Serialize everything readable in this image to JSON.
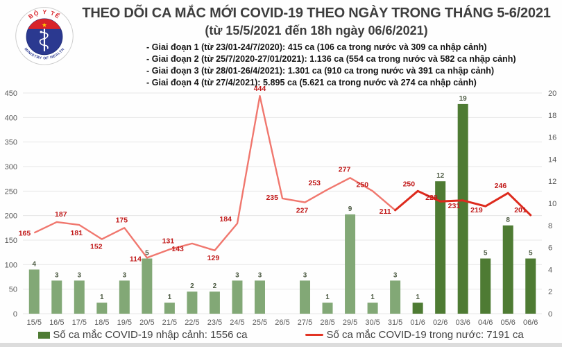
{
  "header": {
    "title": "THEO DÕI CA MẮC MỚI COVID-19 THEO NGÀY TRONG THÁNG 5-6/2021",
    "subtitle": "(từ 15/5/2021 đến 18h ngày 06/6/2021)",
    "phases": [
      "- Giai đoạn 1 (từ 23/01-24/7/2020): 415 ca (106 ca trong nước và 309 ca nhập cảnh)",
      "- Giai đoạn 2 (từ 25/7/2020-27/01/2021): 1.136 ca (554 ca trong nước và 582 ca nhập cảnh)",
      "- Giai đoạn 3 (từ 28/01-26/4/2021): 1.301 ca (910 ca trong nước và 391 ca nhập cảnh)",
      "- Giai đoạn 4 (từ 27/4/2021): 5.895 ca (5.621 ca trong nước và 274 ca nhập cảnh)"
    ],
    "logo_text_top": "BỘ Y TẾ",
    "logo_text_bottom": "MINISTRY OF HEALTH"
  },
  "chart_data": {
    "type": "bar+line",
    "categories": [
      "15/5",
      "16/5",
      "17/5",
      "18/5",
      "19/5",
      "20/5",
      "21/5",
      "22/5",
      "23/5",
      "24/5",
      "25/5",
      "26/5",
      "27/5",
      "28/5",
      "29/5",
      "30/5",
      "31/5",
      "01/6",
      "02/6",
      "03/6",
      "04/6",
      "05/6",
      "06/6"
    ],
    "series": [
      {
        "name": "Số ca mắc COVID-19 nhập cảnh",
        "type": "bar",
        "axis": "right",
        "values": [
          4,
          3,
          3,
          1,
          3,
          5,
          1,
          2,
          2,
          3,
          3,
          0,
          3,
          1,
          9,
          1,
          3,
          1,
          12,
          19,
          5,
          8,
          5
        ]
      },
      {
        "name": "Số ca mắc COVID-19 trong nước",
        "type": "line",
        "axis": "left",
        "values": [
          165,
          187,
          181,
          152,
          175,
          114,
          131,
          143,
          129,
          184,
          444,
          235,
          227,
          253,
          277,
          250,
          211,
          250,
          229,
          231,
          219,
          246,
          201
        ]
      }
    ],
    "left_axis": {
      "min": 0,
      "max": 450,
      "step": 50
    },
    "right_axis": {
      "min": 0,
      "max": 20,
      "step": 2
    },
    "grid": true,
    "legend_position": "bottom",
    "line_emphasis_from_index": 16,
    "bar_dark_from_index": 17
  },
  "legend": {
    "bar_label": "Số ca mắc COVID-19 nhập cảnh: 1556 ca",
    "line_label": "Số ca mắc COVID-19 trong nước: 7191 ca"
  },
  "colors": {
    "bar_light": "#82a876",
    "bar_dark": "#4e7b33",
    "line_light": "#f0776e",
    "line_dark": "#dd2a1d",
    "line_label": "#c11a1a",
    "bar_label": "#4c5a42",
    "axis_text": "#595959",
    "grid": "#e6e6e6",
    "title_text": "#3d3d3d",
    "logo_red": "#d8232a",
    "logo_blue": "#2b3990",
    "logo_star": "#ffd400"
  }
}
